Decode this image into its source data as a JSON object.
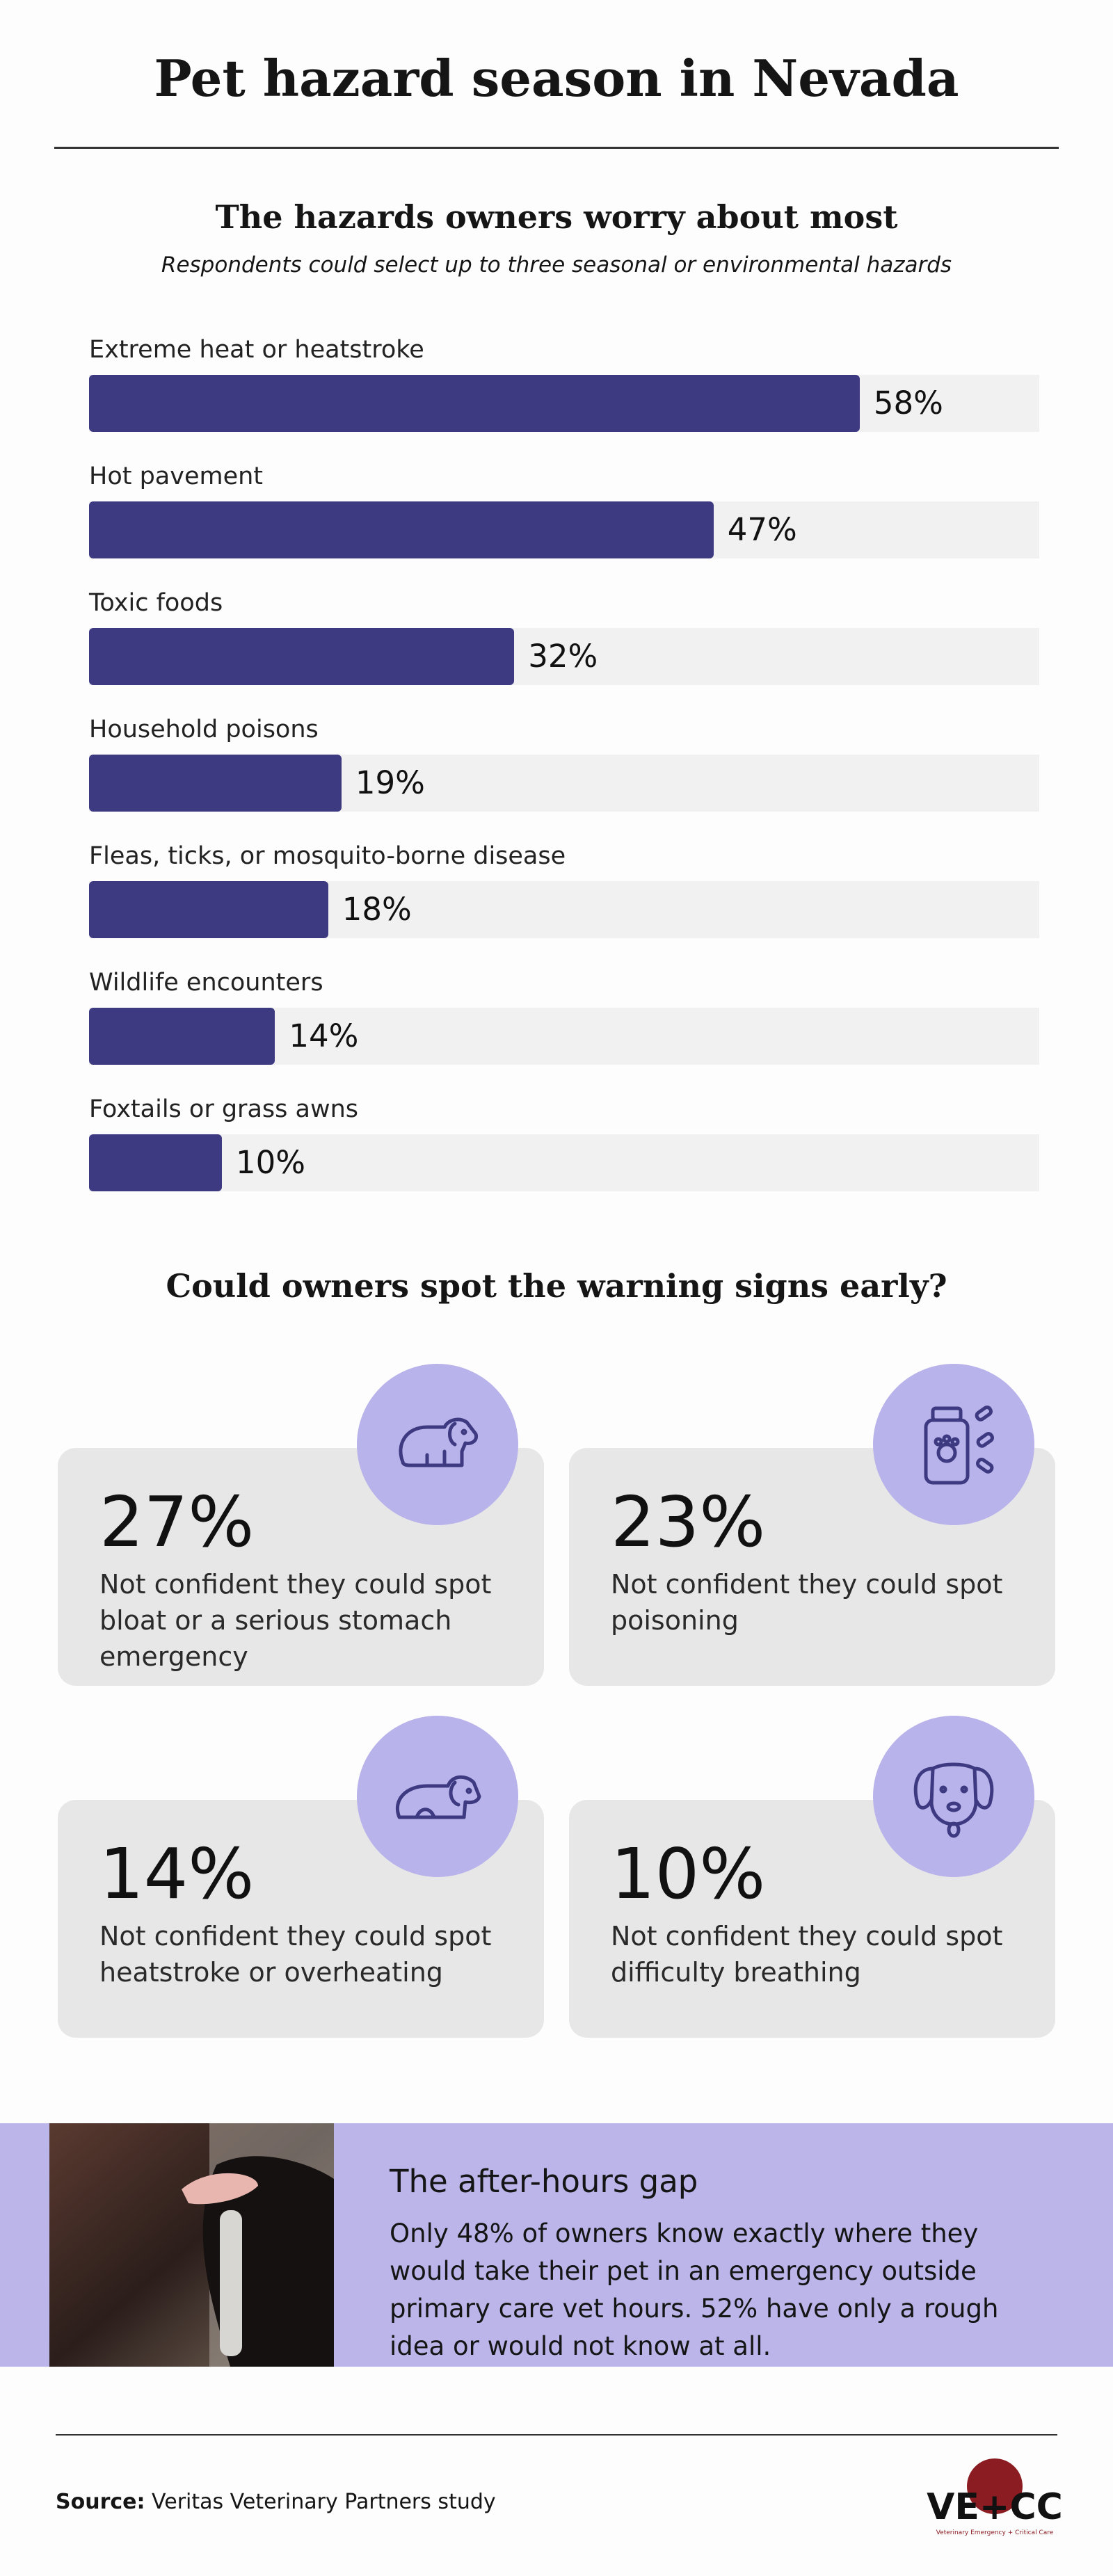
{
  "header": {
    "title": "Pet hazard season in Nevada"
  },
  "chart_data": {
    "type": "bar",
    "orientation": "horizontal",
    "title": "The hazards owners worry about most",
    "subtitle": "Respondents could select up to three seasonal or environmental hazards",
    "categories": [
      "Extreme heat or heatstroke",
      "Hot pavement",
      "Toxic foods",
      "Household poisons",
      "Fleas, ticks, or mosquito-borne disease",
      "Wildlife encounters",
      "Foxtails or grass awns"
    ],
    "values": [
      58,
      47,
      32,
      19,
      18,
      14,
      10
    ],
    "value_labels": [
      "58%",
      "47%",
      "32%",
      "19%",
      "18%",
      "14%",
      "10%"
    ],
    "color": "#3d3a82",
    "track_color": "#f1f1f1"
  },
  "stats": {
    "title": "Could owners spot the warning signs early?",
    "items": [
      {
        "value": "27%",
        "text": "Not confident they could spot bloat or a serious stomach emergency"
      },
      {
        "value": "23%",
        "text": "Not confident they could spot poisoning"
      },
      {
        "value": "14%",
        "text": "Not confident they could spot heatstroke or overheating"
      },
      {
        "value": "10%",
        "text": "Not confident they could spot difficulty breathing"
      }
    ]
  },
  "callout": {
    "title": "The after-hours gap",
    "text": "Only 48% of owners know exactly where they would take their pet in an emergency outside primary care vet hours. 52% have only a rough idea or would not know at all."
  },
  "footer": {
    "source_label": "Source:",
    "source": "Veritas Veterinary Partners study",
    "logo": "VE+CC",
    "logo_subtitle": "Veterinary Emergency + Critical Care"
  }
}
